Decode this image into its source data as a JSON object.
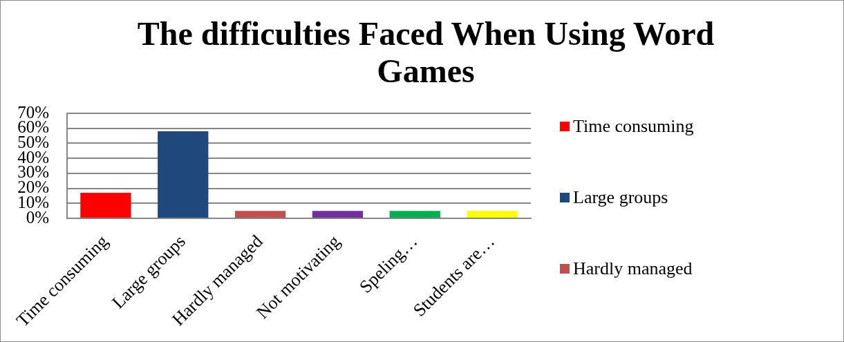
{
  "chart_data": {
    "type": "bar",
    "title": "The difficulties Faced When Using Word Games",
    "categories": [
      "Time consuming",
      "Large groups",
      "Hardly managed",
      "Not motivating",
      "Speling…",
      "Students are…"
    ],
    "series": [
      {
        "name": "Time consuming",
        "color": "#ff0000",
        "values": [
          17,
          null,
          null,
          null,
          null,
          null
        ]
      },
      {
        "name": "Large groups",
        "color": "#1f497d",
        "values": [
          null,
          58,
          null,
          null,
          null,
          null
        ]
      },
      {
        "name": "Hardly managed",
        "color": "#c0504d",
        "values": [
          null,
          null,
          5,
          null,
          null,
          null
        ]
      },
      {
        "color": "#7030a0",
        "values": [
          null,
          null,
          null,
          5,
          null,
          null
        ]
      },
      {
        "color": "#00b050",
        "values": [
          null,
          null,
          null,
          null,
          5,
          null
        ]
      },
      {
        "color": "#ffff00",
        "values": [
          null,
          null,
          null,
          null,
          null,
          5
        ]
      }
    ],
    "ylim": [
      0,
      70
    ],
    "yticks": [
      {
        "value": 0,
        "label": "0%"
      },
      {
        "value": 10,
        "label": "10%"
      },
      {
        "value": 20,
        "label": "20%"
      },
      {
        "value": 30,
        "label": "30%"
      },
      {
        "value": 40,
        "label": "40%"
      },
      {
        "value": 50,
        "label": "50%"
      },
      {
        "value": 60,
        "label": "60%"
      },
      {
        "value": 70,
        "label": "70%"
      }
    ],
    "grid": "y",
    "legend": "right"
  }
}
